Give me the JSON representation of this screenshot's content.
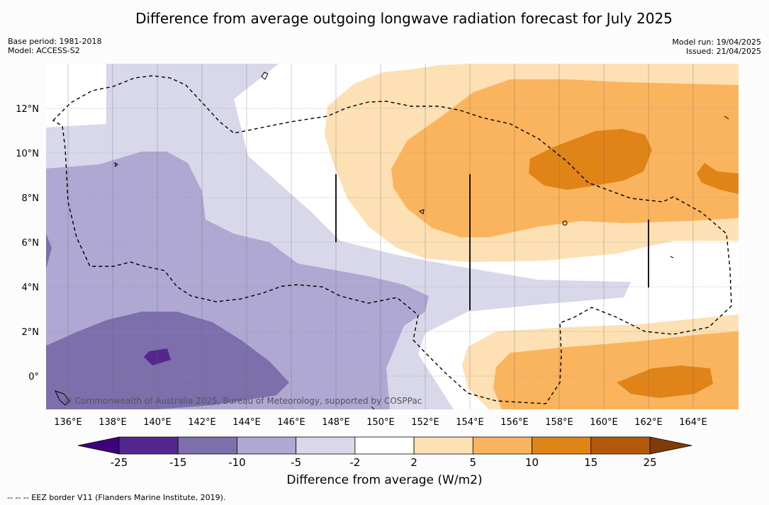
{
  "title": "Difference from average outgoing longwave radiation forecast for July 2025",
  "meta_left": {
    "base_period": "Base period: 1981-2018",
    "model": "Model: ACCESS-S2"
  },
  "meta_right": {
    "model_run": "Model run: 19/04/2025",
    "issued": "Issued: 21/04/2025"
  },
  "copyright": "© Commonwealth of Australia 2025, Bureau of Meteorology, supported by COSPPac",
  "x_ticks": [
    "136°E",
    "138°E",
    "140°E",
    "142°E",
    "144°E",
    "146°E",
    "148°E",
    "150°E",
    "152°E",
    "154°E",
    "156°E",
    "158°E",
    "160°E",
    "162°E",
    "164°E"
  ],
  "y_ticks": [
    "12°N",
    "10°N",
    "8°N",
    "6°N",
    "4°N",
    "2°N",
    "0°"
  ],
  "colorbar": {
    "label": "Difference from average (W/m2)",
    "ticks": [
      "-25",
      "-15",
      "-10",
      "-5",
      "-2",
      "2",
      "5",
      "10",
      "15",
      "25"
    ],
    "colors": [
      "#54278f",
      "#7d6fab",
      "#aea8d2",
      "#d8d8ea",
      "#ffffff",
      "#fde0b4",
      "#fbb45e",
      "#e08417",
      "#b35909"
    ],
    "under_color": "#3f007d",
    "over_color": "#7f3b08"
  },
  "footnote": "--  --  -- EEZ border V11 (Flanders Marine Institute, 2019)."
}
